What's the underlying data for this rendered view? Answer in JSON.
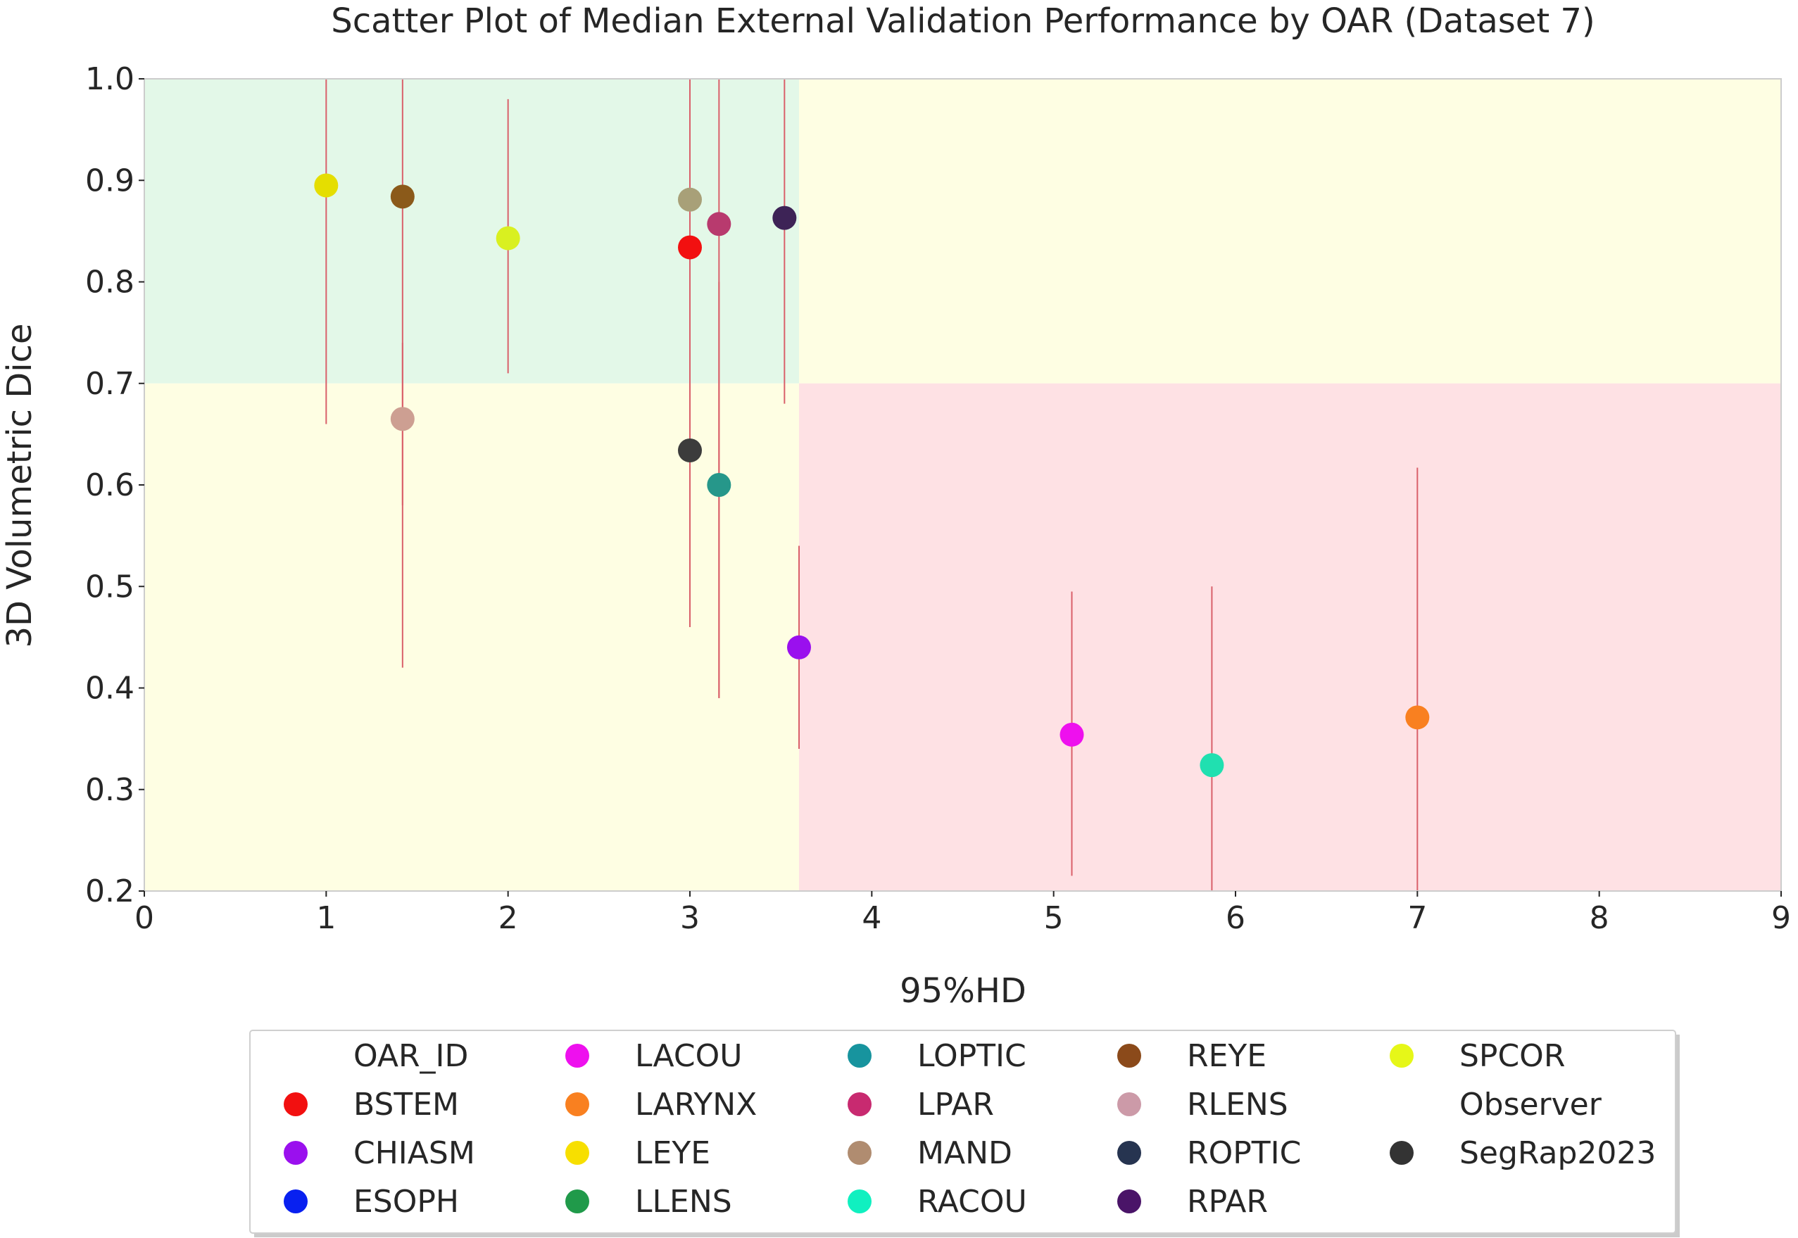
{
  "chart_data": {
    "type": "scatter",
    "title": "Scatter Plot of Median External Validation Performance by OAR (Dataset 7)",
    "xlabel": "95%HD",
    "ylabel": "3D Volumetric Dice",
    "xlim": [
      0,
      9
    ],
    "ylim": [
      0.2,
      1.0
    ],
    "x_ticks": [
      "0",
      "1",
      "2",
      "3",
      "4",
      "5",
      "6",
      "7",
      "8",
      "9"
    ],
    "y_ticks": [
      "0.2",
      "0.3",
      "0.4",
      "0.5",
      "0.6",
      "0.7",
      "0.8",
      "0.9",
      "1.0"
    ],
    "x_tick_values": [
      0,
      1,
      2,
      3,
      4,
      5,
      6,
      7,
      8,
      9
    ],
    "y_tick_values": [
      0.2,
      0.3,
      0.4,
      0.5,
      0.6,
      0.7,
      0.8,
      0.9,
      1.0
    ],
    "grid": false,
    "regions": [
      {
        "x": [
          0,
          3.6
        ],
        "y": [
          0.7,
          1.0
        ],
        "color": "#e3f8e8"
      },
      {
        "x": [
          3.6,
          9
        ],
        "y": [
          0.7,
          1.0
        ],
        "color": "#fefee3"
      },
      {
        "x": [
          0,
          3.6
        ],
        "y": [
          0.2,
          0.7
        ],
        "color": "#fefee3"
      },
      {
        "x": [
          3.6,
          9
        ],
        "y": [
          0.2,
          0.7
        ],
        "color": "#fee1e4"
      }
    ],
    "points": [
      {
        "oar": "LEYE",
        "x": 1.0,
        "y": 0.895,
        "err_low": 0.66,
        "err_high": 1.0,
        "color": "#e5de00"
      },
      {
        "oar": "REYE",
        "x": 1.42,
        "y": 0.884,
        "err_low": 0.42,
        "err_high": 1.0,
        "color": "#8b5a1a"
      },
      {
        "oar": "RLENS",
        "x": 1.42,
        "y": 0.665,
        "err_low": 0.58,
        "err_high": 0.74,
        "color": "#cd9f92"
      },
      {
        "oar": "SPCOR",
        "x": 2.0,
        "y": 0.843,
        "err_low": 0.71,
        "err_high": 0.98,
        "color": "#d9f020"
      },
      {
        "oar": "MAND",
        "x": 3.0,
        "y": 0.881,
        "err_low": 0.72,
        "err_high": 0.98,
        "color": "#a8a078"
      },
      {
        "oar": "BSTEM",
        "x": 3.0,
        "y": 0.834,
        "err_low": 0.46,
        "err_high": 1.0,
        "color": "#f21010"
      },
      {
        "oar": "SegRap2023",
        "x": 3.0,
        "y": 0.634,
        "err_low": 0.46,
        "err_high": 0.9,
        "color": "#3c3c3c"
      },
      {
        "oar": "LPAR",
        "x": 3.16,
        "y": 0.857,
        "err_low": 0.39,
        "err_high": 1.0,
        "color": "#b83a6e"
      },
      {
        "oar": "LOPTIC",
        "x": 3.16,
        "y": 0.6,
        "err_low": 0.39,
        "err_high": 0.8,
        "color": "#26978a"
      },
      {
        "oar": "RPAR",
        "x": 3.52,
        "y": 0.863,
        "err_low": 0.68,
        "err_high": 1.0,
        "color": "#3d2356"
      },
      {
        "oar": "CHIASM",
        "x": 3.6,
        "y": 0.44,
        "err_low": 0.34,
        "err_high": 0.54,
        "color": "#9a10ee"
      },
      {
        "oar": "LACOU",
        "x": 5.1,
        "y": 0.354,
        "err_low": 0.215,
        "err_high": 0.495,
        "color": "#ee10ee"
      },
      {
        "oar": "RACOU",
        "x": 5.87,
        "y": 0.324,
        "err_low": 0.2,
        "err_high": 0.5,
        "color": "#20e0b0"
      },
      {
        "oar": "LARYNX",
        "x": 7.0,
        "y": 0.371,
        "err_low": 0.2,
        "err_high": 0.617,
        "color": "#f98020"
      }
    ],
    "legend": {
      "placement": "bottom-center",
      "columns": [
        [
          {
            "label": "OAR_ID",
            "color": null
          },
          {
            "label": "BSTEM",
            "color": "#f21010"
          },
          {
            "label": "CHIASM",
            "color": "#9a10ee"
          },
          {
            "label": "ESOPH",
            "color": "#0820f0"
          }
        ],
        [
          {
            "label": "LACOU",
            "color": "#ee10ee"
          },
          {
            "label": "LARYNX",
            "color": "#f98020"
          },
          {
            "label": "LEYE",
            "color": "#f7df00"
          },
          {
            "label": "LLENS",
            "color": "#209a4a"
          }
        ],
        [
          {
            "label": "LOPTIC",
            "color": "#17949e"
          },
          {
            "label": "LPAR",
            "color": "#c82a70"
          },
          {
            "label": "MAND",
            "color": "#b08c70"
          },
          {
            "label": "RACOU",
            "color": "#10f0c0"
          }
        ],
        [
          {
            "label": "REYE",
            "color": "#8b4a1a"
          },
          {
            "label": "RLENS",
            "color": "#cc9aa8"
          },
          {
            "label": "ROPTIC",
            "color": "#263450"
          },
          {
            "label": "RPAR",
            "color": "#4a1468"
          }
        ],
        [
          {
            "label": "SPCOR",
            "color": "#e6f718"
          },
          {
            "label": "Observer",
            "color": null
          },
          {
            "label": "SegRap2023",
            "color": "#333333"
          }
        ]
      ]
    }
  }
}
